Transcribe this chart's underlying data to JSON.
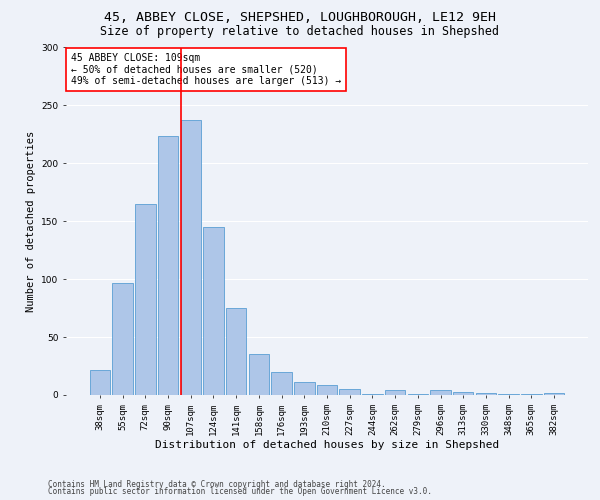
{
  "title1": "45, ABBEY CLOSE, SHEPSHED, LOUGHBOROUGH, LE12 9EH",
  "title2": "Size of property relative to detached houses in Shepshed",
  "xlabel": "Distribution of detached houses by size in Shepshed",
  "ylabel": "Number of detached properties",
  "categories": [
    "38sqm",
    "55sqm",
    "72sqm",
    "90sqm",
    "107sqm",
    "124sqm",
    "141sqm",
    "158sqm",
    "176sqm",
    "193sqm",
    "210sqm",
    "227sqm",
    "244sqm",
    "262sqm",
    "279sqm",
    "296sqm",
    "313sqm",
    "330sqm",
    "348sqm",
    "365sqm",
    "382sqm"
  ],
  "values": [
    22,
    97,
    165,
    224,
    237,
    145,
    75,
    35,
    20,
    11,
    9,
    5,
    1,
    4,
    1,
    4,
    3,
    2,
    1,
    1,
    2
  ],
  "bar_color": "#aec6e8",
  "bar_edge_color": "#5a9fd4",
  "vline_index": 4,
  "vline_color": "red",
  "ylim": [
    0,
    300
  ],
  "yticks": [
    0,
    50,
    100,
    150,
    200,
    250,
    300
  ],
  "annotation_title": "45 ABBEY CLOSE: 109sqm",
  "annotation_line1": "← 50% of detached houses are smaller (520)",
  "annotation_line2": "49% of semi-detached houses are larger (513) →",
  "annotation_box_color": "white",
  "annotation_box_edge": "red",
  "footer1": "Contains HM Land Registry data © Crown copyright and database right 2024.",
  "footer2": "Contains public sector information licensed under the Open Government Licence v3.0.",
  "background_color": "#eef2f9",
  "grid_color": "white",
  "title1_fontsize": 9.5,
  "title2_fontsize": 8.5,
  "xlabel_fontsize": 8,
  "ylabel_fontsize": 7.5,
  "tick_fontsize": 6.5,
  "annotation_fontsize": 7,
  "footer_fontsize": 5.5
}
